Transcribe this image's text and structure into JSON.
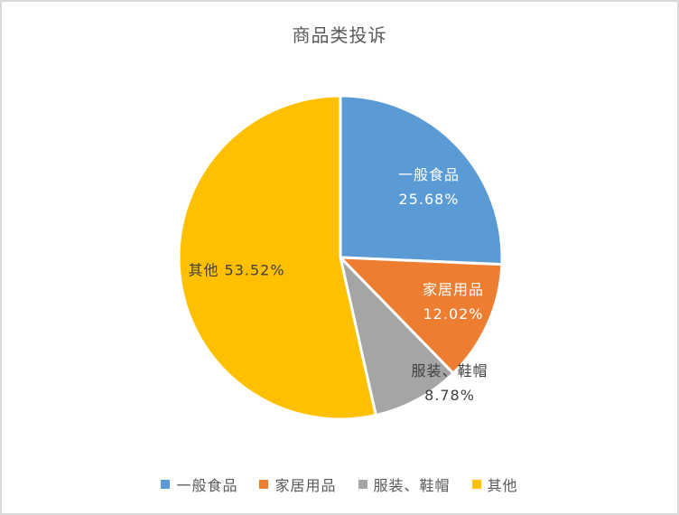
{
  "title": "商品类投诉",
  "colors": {
    "background": "#FFFFFF",
    "canvas_border": "#D9D9D9",
    "title_text": "#595959",
    "legend_text": "#595959",
    "label_on_dark_slice": "#FFFFFF",
    "label_on_light_slice": "#404040",
    "slice_separator": "#FFFFFF"
  },
  "chart_data": {
    "type": "pie",
    "title": "商品类投诉",
    "categories": [
      "一般食品",
      "家居用品",
      "服装、鞋帽",
      "其他"
    ],
    "values": [
      25.68,
      12.02,
      8.78,
      53.52
    ],
    "value_unit": "%",
    "slice_colors": [
      "#5B9BD5",
      "#ED7D31",
      "#A5A5A5",
      "#FFC000"
    ],
    "start_angle_deg": 0,
    "direction": "clockwise",
    "data_labels": [
      {
        "category": "一般食品",
        "value_label": "25.68%"
      },
      {
        "category": "家居用品",
        "value_label": "12.02%"
      },
      {
        "category": "服装、鞋帽",
        "value_label": "8.78%"
      },
      {
        "category": "其他",
        "value_label": "53.52%"
      }
    ],
    "legend": {
      "position": "bottom",
      "items": [
        "一般食品",
        "家居用品",
        "服装、鞋帽",
        "其他"
      ]
    }
  }
}
